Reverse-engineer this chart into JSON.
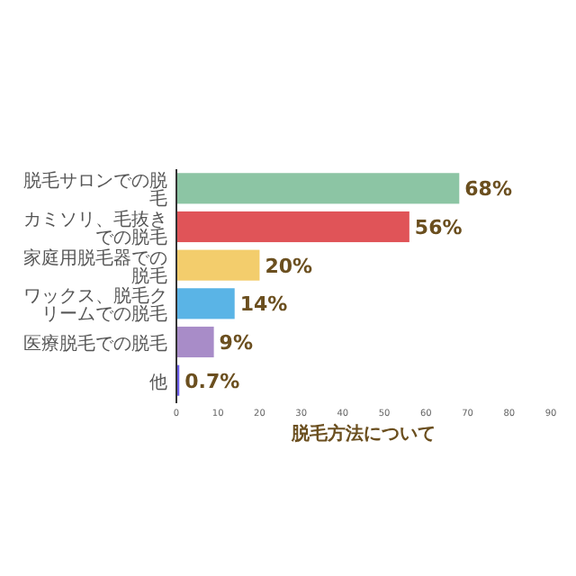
{
  "chart_data": {
    "type": "bar",
    "orientation": "horizontal",
    "xlabel": "脱毛方法について",
    "categories": [
      "脱毛サロンでの脱毛",
      "カミソリ、毛抜きでの脱毛",
      "家庭用脱毛器での脱毛",
      "ワックス、脱毛クリームでの脱毛",
      "医療脱毛での脱毛",
      "他"
    ],
    "values": [
      68,
      56,
      20,
      14,
      9,
      0.7
    ],
    "value_labels": [
      "68%",
      "56%",
      "20%",
      "14%",
      "9%",
      "0.7%"
    ],
    "colors": [
      "#8cc5a4",
      "#e05458",
      "#f3cd6c",
      "#5ab4e6",
      "#a88cc8",
      "#6a5ce8"
    ],
    "xlim": [
      0,
      90
    ],
    "xticks": [
      0,
      10,
      20,
      30,
      40,
      50,
      60,
      70,
      80,
      90
    ],
    "grid": false
  }
}
